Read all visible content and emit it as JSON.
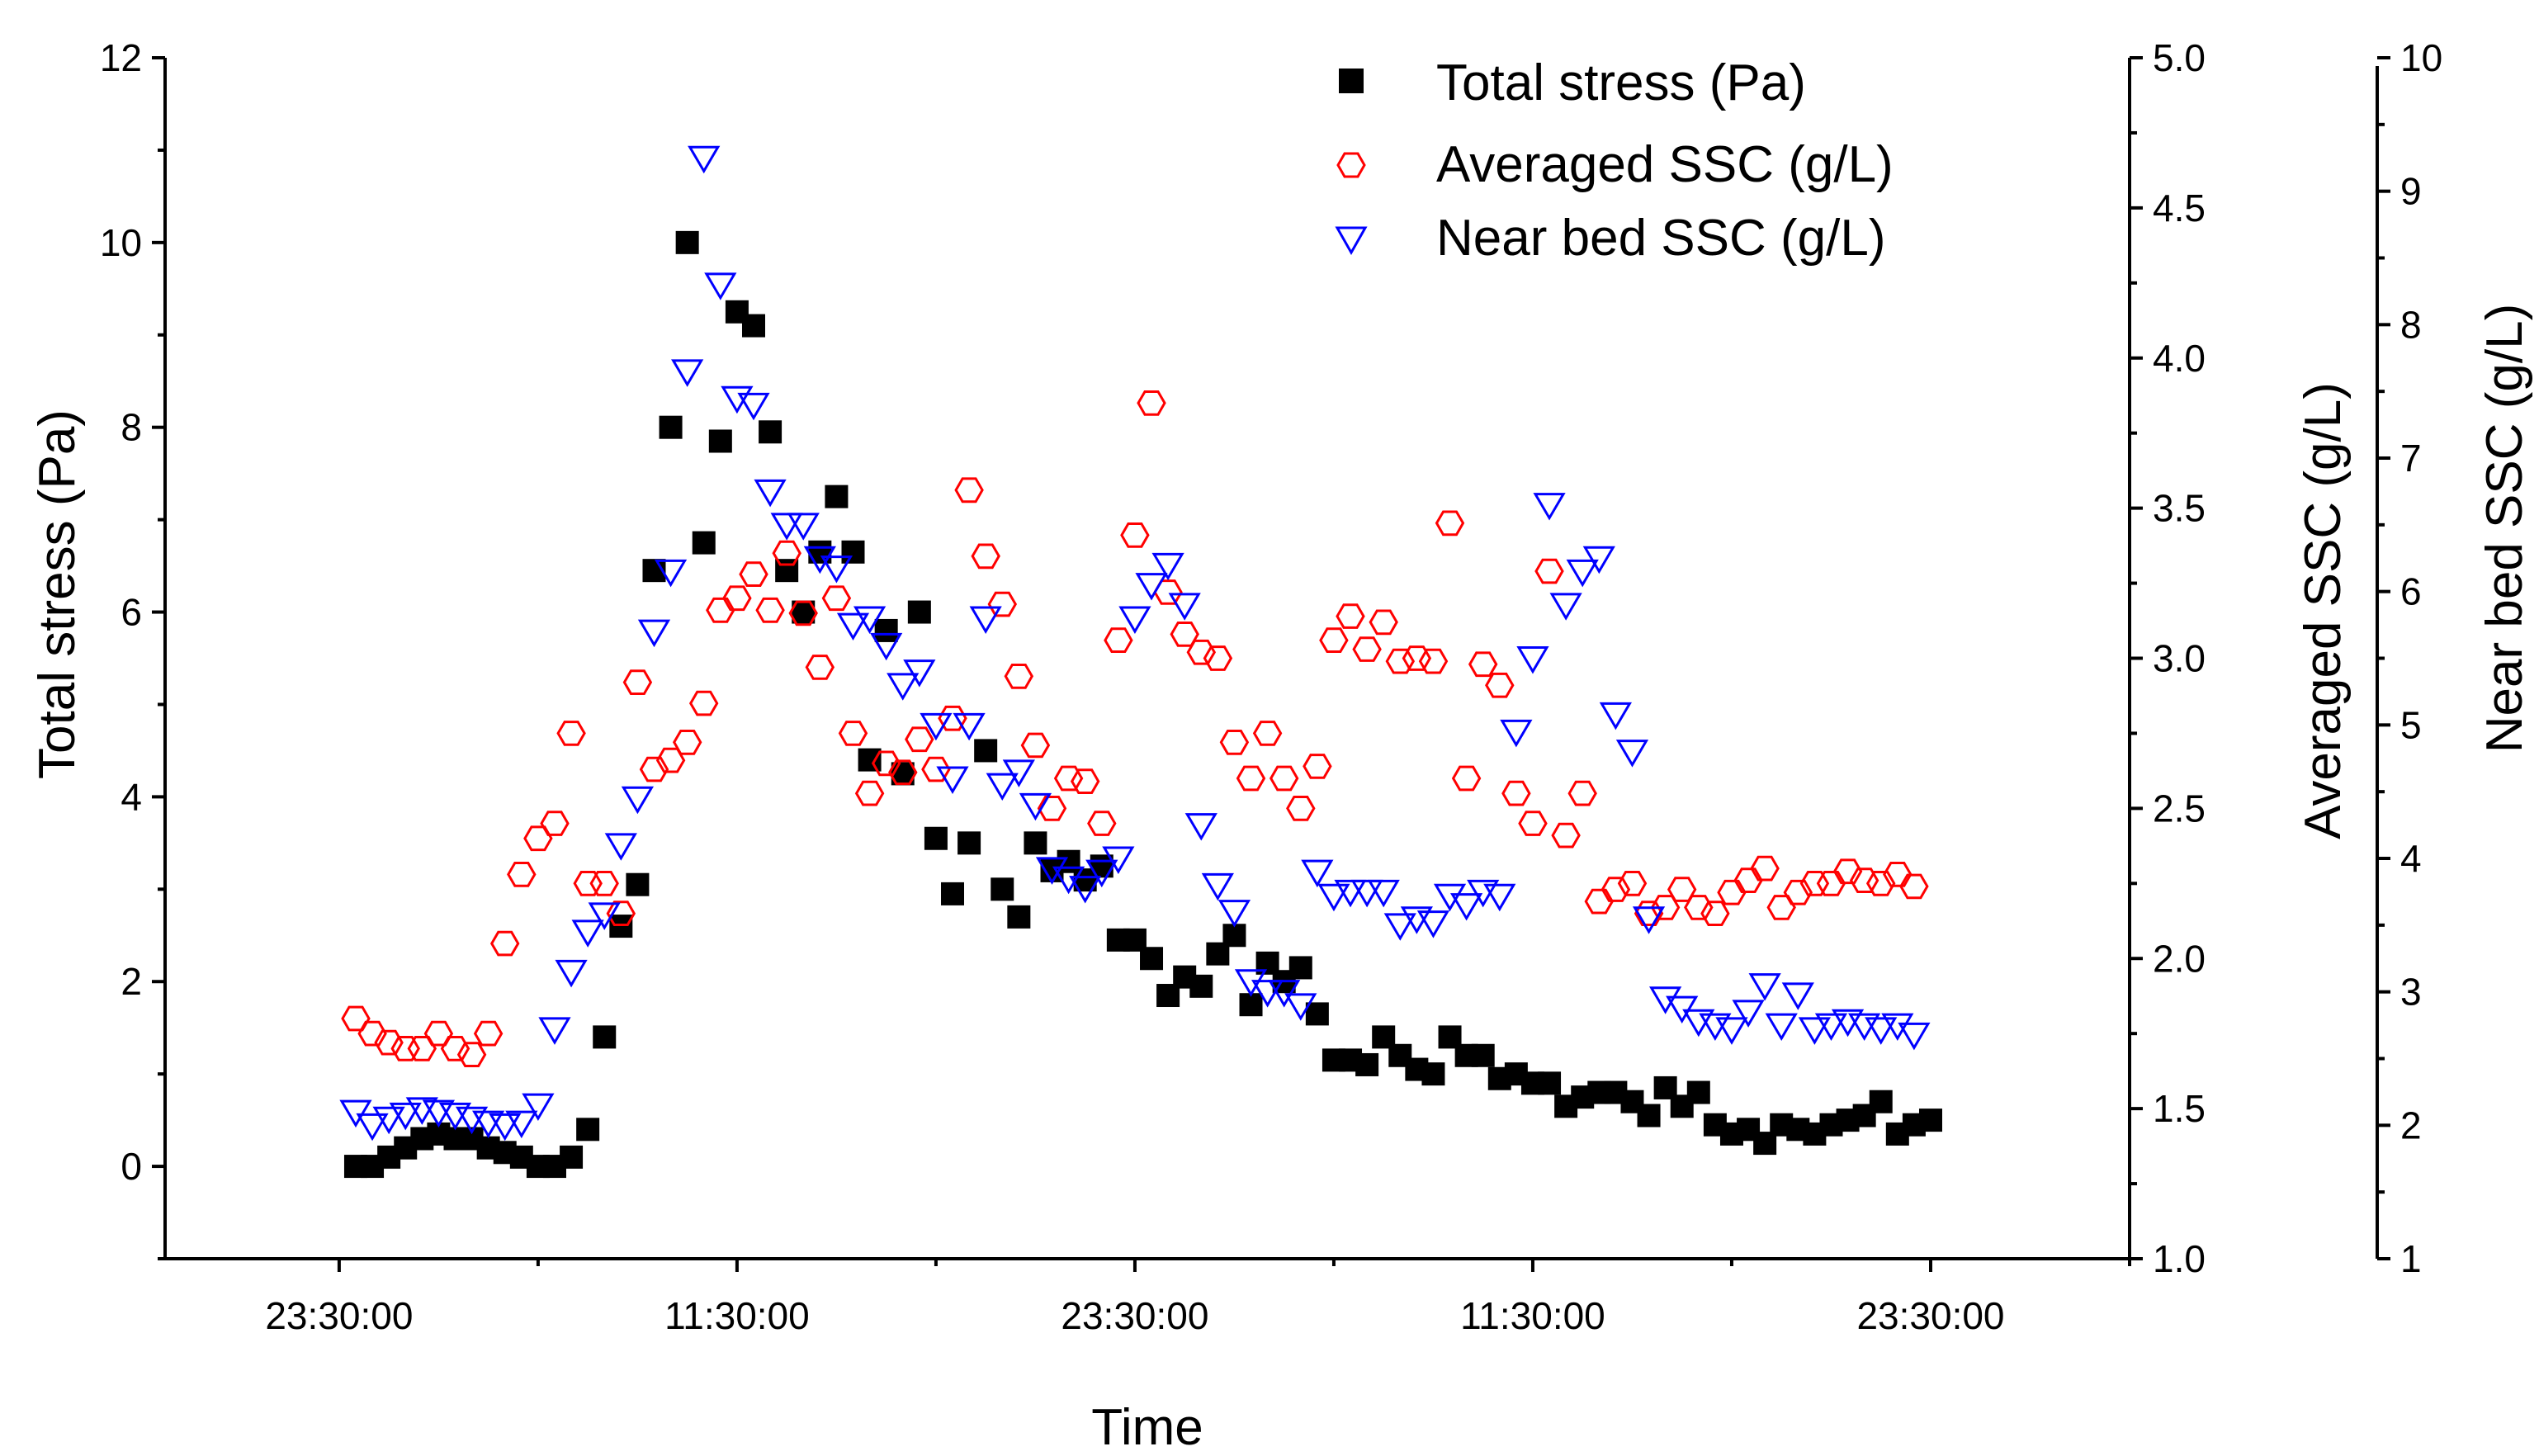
{
  "chart_data": {
    "type": "scatter",
    "title": "",
    "xlabel": "Time",
    "x_ticks": [
      "23:30:00",
      "11:30:00",
      "23:30:00",
      "11:30:00",
      "23:30:00"
    ],
    "x_units": "hours since first labeled tick",
    "x_tick_hours": [
      0,
      12,
      24,
      36,
      48
    ],
    "xlim": [
      -5.25,
      54
    ],
    "left_axis": {
      "label": "Total stress (Pa)",
      "range": [
        -1,
        12
      ],
      "ticks": [
        0,
        2,
        4,
        6,
        8,
        10,
        12
      ]
    },
    "right_axis_1": {
      "label": "Averaged SSC (g/L)",
      "range": [
        1.0,
        5.0
      ],
      "ticks": [
        "1.0",
        "1.5",
        "2.0",
        "2.5",
        "3.0",
        "3.5",
        "4.0",
        "4.5",
        "5.0"
      ]
    },
    "right_axis_2": {
      "label": "Near bed SSC (g/L)",
      "range": [
        1,
        10
      ],
      "ticks": [
        "1",
        "2",
        "3",
        "4",
        "5",
        "6",
        "7",
        "8",
        "9",
        "10"
      ]
    },
    "legend": [
      "Total stress (Pa)",
      "Averaged SSC (g/L)",
      "Near bed SSC (g/L)"
    ],
    "legend_position": "top-right",
    "series": [
      {
        "name": "Total stress (Pa)",
        "axis": "left",
        "marker": "filled-square",
        "color": "#000000",
        "x": [
          0.5,
          1.0,
          1.5,
          2.0,
          2.5,
          3.0,
          3.5,
          4.0,
          4.5,
          5.0,
          5.5,
          6.0,
          6.5,
          7.0,
          7.5,
          8.0,
          8.5,
          9.0,
          9.5,
          10.0,
          10.5,
          11.0,
          11.5,
          12.0,
          12.5,
          13.0,
          13.5,
          14.0,
          14.5,
          15.0,
          15.5,
          16.0,
          16.5,
          17.0,
          17.5,
          18.0,
          18.5,
          19.0,
          19.5,
          20.0,
          20.5,
          21.0,
          21.5,
          22.0,
          22.5,
          23.0,
          23.5,
          24.0,
          24.5,
          25.0,
          25.5,
          26.0,
          26.5,
          27.0,
          27.5,
          28.0,
          28.5,
          29.0,
          29.5,
          30.0,
          30.5,
          31.0,
          31.5,
          32.0,
          32.5,
          33.0,
          33.5,
          34.0,
          34.5,
          35.0,
          35.5,
          36.0,
          36.5,
          37.0,
          37.5,
          38.0,
          38.5,
          39.0,
          39.5,
          40.0,
          40.5,
          41.0,
          41.5,
          42.0,
          42.5,
          43.0,
          43.5,
          44.0,
          44.5,
          45.0,
          45.5,
          46.0,
          46.5,
          47.0,
          47.5,
          48.0
        ],
        "values": [
          0.0,
          0.0,
          0.1,
          0.2,
          0.3,
          0.35,
          0.3,
          0.3,
          0.2,
          0.15,
          0.1,
          0.0,
          0.0,
          0.1,
          0.4,
          1.4,
          2.6,
          3.05,
          6.45,
          8.0,
          10.0,
          6.75,
          7.85,
          9.25,
          9.1,
          7.95,
          6.45,
          6.0,
          6.65,
          7.25,
          6.65,
          4.4,
          5.8,
          4.25,
          6.0,
          3.55,
          2.95,
          3.5,
          4.5,
          3.0,
          2.7,
          3.5,
          3.2,
          3.3,
          3.1,
          3.25,
          2.45,
          2.45,
          2.25,
          1.85,
          2.05,
          1.95,
          2.3,
          2.5,
          1.75,
          2.2,
          2.0,
          2.15,
          1.65,
          1.15,
          1.15,
          1.1,
          1.4,
          1.2,
          1.05,
          1.0,
          1.4,
          1.2,
          1.2,
          0.95,
          1.0,
          0.9,
          0.9,
          0.65,
          0.75,
          0.8,
          0.8,
          0.7,
          0.55,
          0.85,
          0.65,
          0.8,
          0.45,
          0.35,
          0.4,
          0.25,
          0.45,
          0.4,
          0.35,
          0.45,
          0.5,
          0.55,
          0.7,
          0.35,
          0.45,
          0.5
        ]
      },
      {
        "name": "Averaged SSC (g/L)",
        "axis": "right_1",
        "marker": "open-hexagon",
        "color": "#ff0000",
        "x": [
          0.5,
          1.0,
          1.5,
          2.0,
          2.5,
          3.0,
          3.5,
          4.0,
          4.5,
          5.0,
          5.5,
          6.0,
          6.5,
          7.0,
          7.5,
          8.0,
          8.5,
          9.0,
          9.5,
          10.0,
          10.5,
          11.0,
          11.5,
          12.0,
          12.5,
          13.0,
          13.5,
          14.0,
          14.5,
          15.0,
          15.5,
          16.0,
          16.5,
          17.0,
          17.5,
          18.0,
          18.5,
          19.0,
          19.5,
          20.0,
          20.5,
          21.0,
          21.5,
          22.0,
          22.5,
          23.0,
          23.5,
          24.0,
          24.5,
          25.0,
          25.5,
          26.0,
          26.5,
          27.0,
          27.5,
          28.0,
          28.5,
          29.0,
          29.5,
          30.0,
          30.5,
          31.0,
          31.5,
          32.0,
          32.5,
          33.0,
          33.5,
          34.0,
          34.5,
          35.0,
          35.5,
          36.0,
          36.5,
          37.0,
          37.5,
          38.0,
          38.5,
          39.0,
          39.5,
          40.0,
          40.5,
          41.0,
          41.5,
          42.0,
          42.5,
          43.0,
          43.5,
          44.0,
          44.5,
          45.0,
          45.5,
          46.0,
          46.5,
          47.0,
          47.5
        ],
        "values": [
          1.8,
          1.75,
          1.72,
          1.7,
          1.7,
          1.75,
          1.7,
          1.68,
          1.75,
          2.05,
          2.28,
          2.4,
          2.45,
          2.75,
          2.25,
          2.25,
          2.15,
          2.92,
          2.63,
          2.66,
          2.72,
          2.85,
          3.16,
          3.2,
          3.28,
          3.16,
          3.35,
          3.15,
          2.97,
          3.2,
          2.75,
          2.55,
          2.65,
          2.62,
          2.73,
          2.63,
          2.8,
          3.56,
          3.34,
          3.18,
          2.94,
          2.71,
          2.5,
          2.6,
          2.59,
          2.45,
          3.06,
          3.41,
          3.85,
          3.22,
          3.08,
          3.02,
          3.0,
          2.72,
          2.6,
          2.75,
          2.6,
          2.5,
          2.64,
          3.06,
          3.14,
          3.03,
          3.12,
          2.99,
          3.0,
          2.99,
          3.45,
          2.6,
          2.98,
          2.91,
          2.55,
          2.45,
          3.29,
          2.41,
          2.55,
          2.19,
          2.23,
          2.25,
          2.15,
          2.17,
          2.23,
          2.17,
          2.15,
          2.22,
          2.26,
          2.3,
          2.17,
          2.22,
          2.25,
          2.25,
          2.29,
          2.26,
          2.25,
          2.28,
          2.24
        ]
      },
      {
        "name": "Near bed SSC (g/L)",
        "axis": "right_2",
        "marker": "open-triangle-down",
        "color": "#0000ff",
        "x": [
          0.5,
          1.0,
          1.5,
          2.0,
          2.5,
          3.0,
          3.5,
          4.0,
          4.5,
          5.0,
          5.5,
          6.0,
          6.5,
          7.0,
          7.5,
          8.0,
          8.5,
          9.0,
          9.5,
          10.0,
          10.5,
          11.0,
          11.5,
          12.0,
          12.5,
          13.0,
          13.5,
          14.0,
          14.5,
          15.0,
          15.5,
          16.0,
          16.5,
          17.0,
          17.5,
          18.0,
          18.5,
          19.0,
          19.5,
          20.0,
          20.5,
          21.0,
          21.5,
          22.0,
          22.5,
          23.0,
          23.5,
          24.0,
          24.5,
          25.0,
          25.5,
          26.0,
          26.5,
          27.0,
          27.5,
          28.0,
          28.5,
          29.0,
          29.5,
          30.0,
          30.5,
          31.0,
          31.5,
          32.0,
          32.5,
          33.0,
          33.5,
          34.0,
          34.5,
          35.0,
          35.5,
          36.0,
          36.5,
          37.0,
          37.5,
          38.0,
          38.5,
          39.0,
          39.5,
          40.0,
          40.5,
          41.0,
          41.5,
          42.0,
          42.5,
          43.0,
          43.5,
          44.0,
          44.5,
          45.0,
          45.5,
          46.0,
          46.5,
          47.0,
          47.5
        ],
        "values": [
          2.1,
          2.0,
          2.05,
          2.08,
          2.12,
          2.1,
          2.08,
          2.05,
          2.02,
          2.0,
          2.02,
          2.15,
          2.72,
          3.15,
          3.45,
          3.58,
          4.1,
          4.45,
          5.7,
          6.15,
          7.65,
          9.25,
          8.3,
          7.45,
          7.4,
          6.75,
          6.5,
          6.5,
          6.25,
          6.18,
          5.75,
          5.8,
          5.6,
          5.3,
          5.4,
          5.0,
          4.6,
          5.0,
          5.8,
          4.55,
          4.65,
          4.4,
          3.92,
          3.85,
          3.78,
          3.9,
          4.0,
          5.8,
          6.05,
          6.2,
          5.9,
          4.25,
          3.8,
          3.6,
          3.08,
          3.0,
          3.0,
          2.9,
          3.9,
          3.72,
          3.75,
          3.75,
          3.75,
          3.5,
          3.55,
          3.52,
          3.72,
          3.65,
          3.75,
          3.72,
          4.95,
          5.5,
          6.65,
          5.9,
          6.15,
          6.25,
          5.08,
          4.8,
          3.55,
          2.95,
          2.88,
          2.78,
          2.75,
          2.72,
          2.85,
          3.05,
          2.75,
          2.98,
          2.72,
          2.75,
          2.78,
          2.75,
          2.72,
          2.75,
          2.68
        ]
      }
    ]
  }
}
